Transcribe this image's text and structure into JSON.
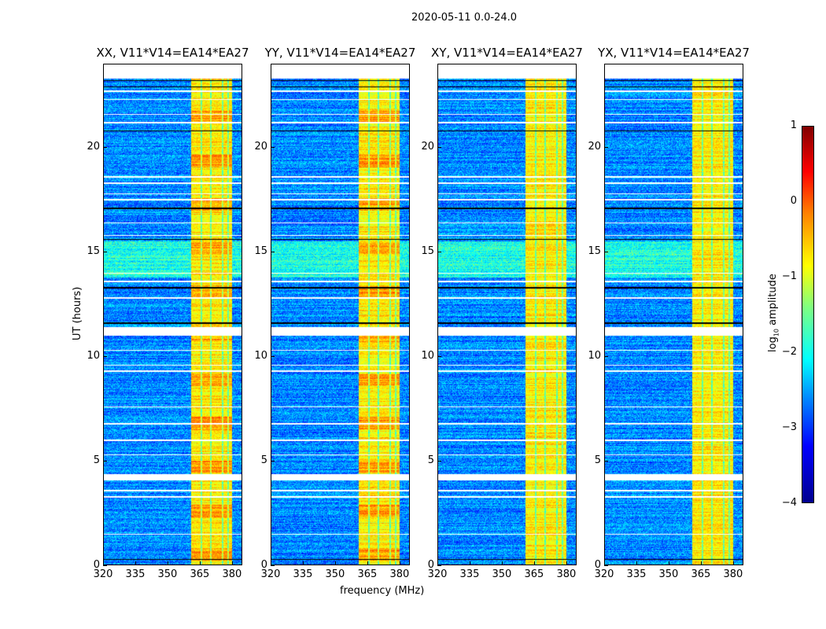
{
  "chart_data": {
    "type": "heatmap",
    "title": "2020-05-11 0.0-24.0",
    "xlabel": "frequency (MHz)",
    "ylabel": "UT (hours)",
    "xlim": [
      320,
      384.8
    ],
    "ylim": [
      0,
      24
    ],
    "xticks": [
      "320",
      "335",
      "350",
      "365",
      "380"
    ],
    "xtick_values": [
      320,
      335,
      350,
      365,
      380
    ],
    "yticks": [
      "0",
      "5",
      "10",
      "15",
      "20"
    ],
    "ytick_values": [
      0,
      5,
      10,
      15,
      20
    ],
    "panels": [
      {
        "title": "XX, V11*V14=EA14*EA27"
      },
      {
        "title": "YY, V11*V14=EA14*EA27"
      },
      {
        "title": "XY, V11*V14=EA14*EA27"
      },
      {
        "title": "YX, V11*V14=EA14*EA27"
      }
    ],
    "colormap": "jet",
    "colorbar": {
      "label_prefix": "log",
      "label_sub": "10",
      "label_suffix": " amplitude",
      "range": [
        -4,
        1
      ],
      "ticks": [
        "1",
        "0",
        "−1",
        "−2",
        "−3",
        "−4"
      ],
      "tick_values": [
        1,
        0,
        -1,
        -2,
        -3,
        -4
      ]
    },
    "high_amplitude_band_mhz": [
      361,
      380
    ],
    "band_level_log10": -0.8,
    "background_level_log10": -2.7,
    "flagged_ut_ranges_hours": [
      [
        4.1,
        4.4
      ],
      [
        11.0,
        11.4
      ],
      [
        23.3,
        24.0
      ]
    ],
    "flagged_ut_lines_hours": [
      1.5,
      3.3,
      3.6,
      5.3,
      6.0,
      6.8,
      7.6,
      9.3,
      9.6,
      10.3,
      12.8,
      13.6,
      14.0,
      15.8,
      16.4,
      17.5,
      17.8,
      18.3,
      18.6,
      21.2,
      21.6,
      22.3,
      22.7
    ],
    "dark_ut_lines_hours": [
      0.3,
      11.6,
      13.3,
      15.6,
      17.1,
      20.8,
      22.9,
      23.2
    ]
  }
}
